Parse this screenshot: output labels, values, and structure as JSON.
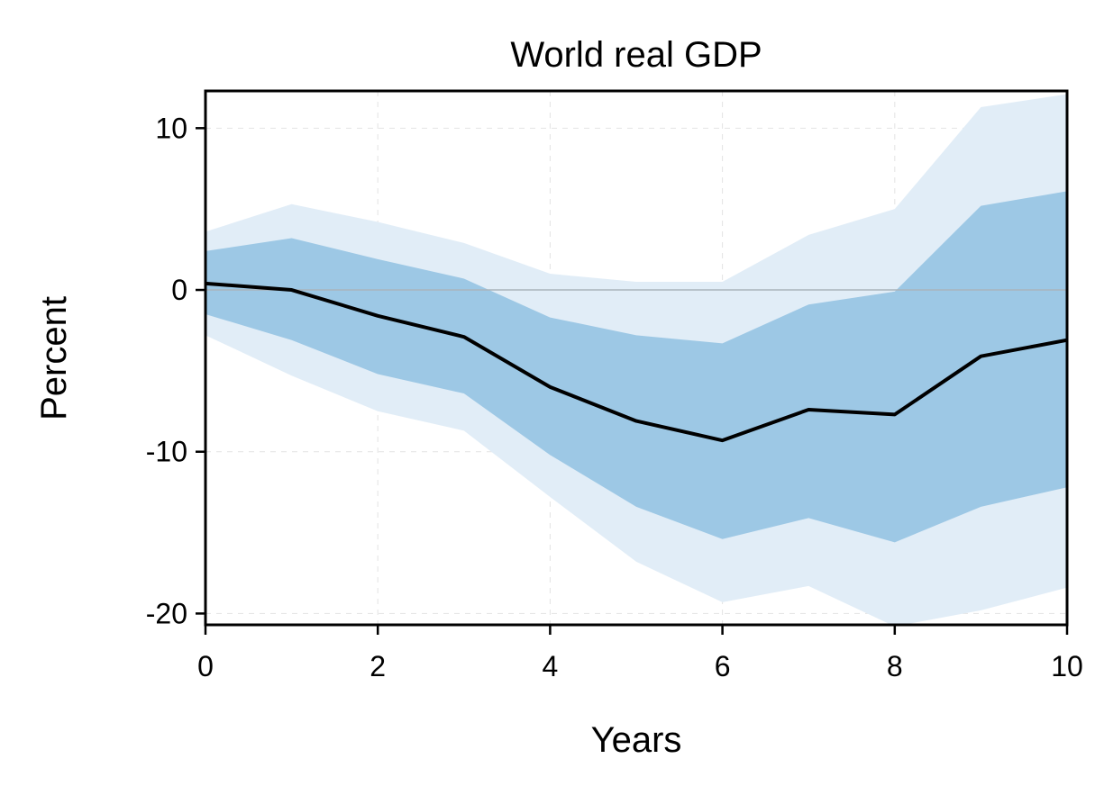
{
  "chart_data": {
    "type": "area",
    "title": "World real GDP",
    "xlabel": "Years",
    "ylabel": "Percent",
    "xlim": [
      0,
      10
    ],
    "ylim": [
      -20.7,
      12.3
    ],
    "xticks": [
      0,
      2,
      4,
      6,
      8,
      10
    ],
    "yticks": [
      10,
      0,
      -10,
      -20
    ],
    "grid": true,
    "legend": "none",
    "x": [
      0,
      1,
      2,
      3,
      4,
      5,
      6,
      7,
      8,
      9,
      10
    ],
    "series": [
      {
        "role": "point-estimate",
        "values": [
          0.4,
          0.0,
          -1.6,
          -2.9,
          -6.0,
          -8.1,
          -9.3,
          -7.4,
          -7.7,
          -4.1,
          -3.1
        ]
      },
      {
        "role": "inner-band",
        "upper": [
          2.4,
          3.2,
          1.9,
          0.7,
          -1.7,
          -2.8,
          -3.3,
          -0.9,
          -0.1,
          5.2,
          6.1
        ],
        "lower": [
          -1.5,
          -3.1,
          -5.2,
          -6.4,
          -10.2,
          -13.4,
          -15.4,
          -14.1,
          -15.6,
          -13.4,
          -12.2
        ]
      },
      {
        "role": "outer-band",
        "upper": [
          3.6,
          5.3,
          4.2,
          2.9,
          1.0,
          0.5,
          0.5,
          3.4,
          5.0,
          11.3,
          12.1
        ],
        "lower": [
          -2.8,
          -5.3,
          -7.5,
          -8.7,
          -12.8,
          -16.8,
          -19.3,
          -18.3,
          -20.8,
          -19.8,
          -18.4
        ]
      }
    ],
    "colors": {
      "line": "#000000",
      "inner_band": "#9dc8e5",
      "outer_band": "#e1edf7",
      "zero_line": "#a9b4bb",
      "grid": "#e3e3e3",
      "frame": "#000000"
    }
  }
}
